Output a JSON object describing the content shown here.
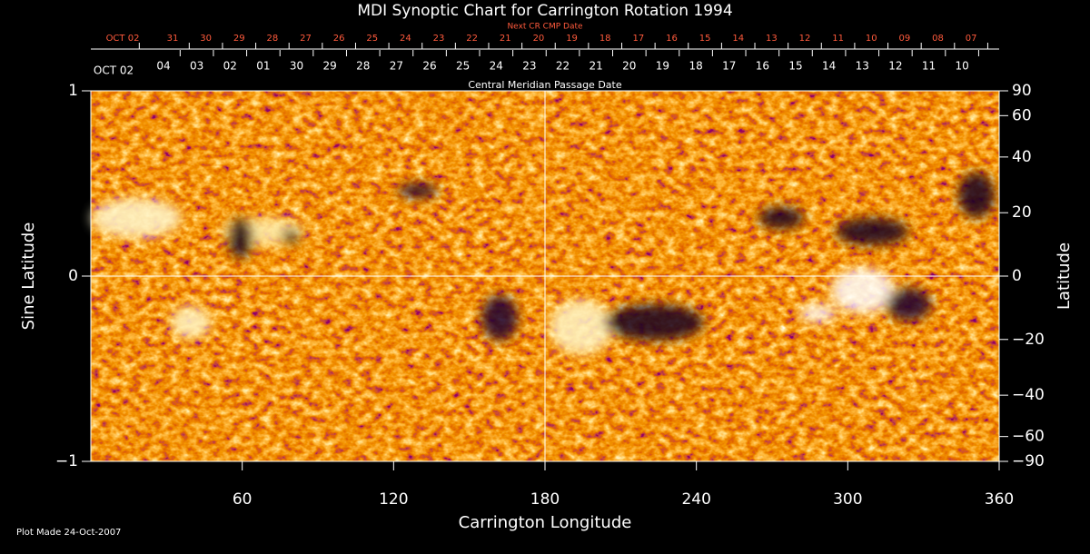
{
  "chart_data": {
    "type": "synoptic-map",
    "title": "MDI Synoptic Chart for Carrington Rotation 1994",
    "x_label": "Carrington Longitude",
    "y_label": "Sine Latitude",
    "y2_label": "Latitude",
    "xlim": [
      0,
      360
    ],
    "xticks": [
      60,
      120,
      180,
      240,
      300,
      360
    ],
    "ylim": [
      -1,
      1
    ],
    "yticks": [
      {
        "value": -1,
        "label": "−1"
      },
      0,
      1
    ],
    "y2lim": [
      -90,
      90
    ],
    "y2scale": "sine",
    "y2ticks": [
      90,
      60,
      40,
      20,
      0,
      {
        "value": -20,
        "label": "−20"
      },
      {
        "value": -40,
        "label": "−40"
      },
      {
        "value": -60,
        "label": "−60"
      },
      {
        "value": -90,
        "label": "−90"
      }
    ],
    "top_axis_label": "Central Meridian Passage Date",
    "top_dates": [
      "OCT 02",
      "04",
      "03",
      "02",
      "01",
      "30",
      "29",
      "28",
      "27",
      "26",
      "25",
      "24",
      "23",
      "22",
      "21",
      "20",
      "19",
      "18",
      "17",
      "16",
      "15",
      "14",
      "13",
      "12",
      "11",
      "10"
    ],
    "next_axis_label": "Next CR CMP Date",
    "next_dates": [
      "OCT 02",
      "31",
      "30",
      "29",
      "28",
      "27",
      "26",
      "25",
      "24",
      "23",
      "22",
      "21",
      "20",
      "19",
      "18",
      "17",
      "16",
      "15",
      "14",
      "13",
      "12",
      "11",
      "10",
      "09",
      "08",
      "07"
    ],
    "footnote": "Plot Made 24-Oct-2007"
  }
}
